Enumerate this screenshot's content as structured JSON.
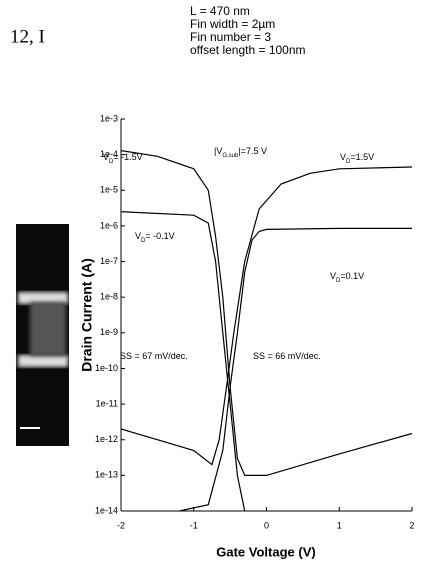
{
  "chart_data": {
    "type": "line",
    "heading": "12, I",
    "parameters": [
      "L = 470 nm",
      "Fin width = 2µm",
      "Fin number = 3",
      "offset length = 100nm"
    ],
    "xlabel": "Gate Voltage (V)",
    "ylabel": "Drain Current (A)",
    "xlim": [
      -2,
      2
    ],
    "xticks": [
      -2,
      -1,
      0,
      1,
      2
    ],
    "ylim": [
      1e-14,
      0.001
    ],
    "log_y": true,
    "yticks": [
      {
        "value": 0.001,
        "label": "1e-3"
      },
      {
        "value": 0.0001,
        "label": "1e-4"
      },
      {
        "value": 1e-05,
        "label": "1e-5"
      },
      {
        "value": 1e-06,
        "label": "1e-6"
      },
      {
        "value": 1e-07,
        "label": "1e-7"
      },
      {
        "value": 1e-08,
        "label": "1e-8"
      },
      {
        "value": 1e-09,
        "label": "1e-9"
      },
      {
        "value": 1e-10,
        "label": "1e-10"
      },
      {
        "value": 1e-11,
        "label": "1e-11"
      },
      {
        "value": 1e-12,
        "label": "1e-12"
      },
      {
        "value": 1e-13,
        "label": "1e-13"
      },
      {
        "value": 1e-14,
        "label": "1e-14"
      }
    ],
    "annotations": [
      {
        "text": "V",
        "sub": "D",
        "after": "= -1.5V"
      },
      {
        "text": "|V",
        "sub": "G,sub",
        "after": "|=7.5 V"
      },
      {
        "text": "V",
        "sub": "D",
        "after": "=1.5V"
      },
      {
        "text": "V",
        "sub": "D",
        "after": "= -0.1V"
      },
      {
        "text": "V",
        "sub": "D",
        "after": "=0.1V"
      },
      {
        "text": "SS = 67 mV/dec."
      },
      {
        "text": "SS = 66 mV/dec."
      }
    ],
    "series": [
      {
        "color": "#000000",
        "x": [
          -2,
          -1.5,
          -1.0,
          -0.8,
          -0.7,
          -0.6,
          -0.5,
          -0.4,
          -0.3,
          0,
          1,
          2
        ],
        "values": [
          0.00013,
          9e-05,
          4e-05,
          1e-05,
          5e-07,
          1e-08,
          3e-11,
          3e-13,
          1e-13,
          1e-13,
          4e-13,
          1.5e-12
        ]
      },
      {
        "color": "#000000",
        "x": [
          -2,
          -1,
          -0.8,
          -0.7,
          -0.6,
          -0.5,
          -0.4,
          -0.3
        ],
        "values": [
          2.5e-06,
          2e-06,
          1.2e-06,
          1e-07,
          1e-09,
          1e-11,
          1e-13,
          1e-14
        ]
      },
      {
        "color": "#000000",
        "x": [
          -2,
          -1.5,
          -1,
          -0.75,
          -0.65,
          -0.55,
          -0.45,
          -0.3,
          -0.1,
          0.2,
          0.6,
          1.0,
          2
        ],
        "values": [
          2e-12,
          1e-12,
          5e-13,
          2e-13,
          1e-12,
          3e-11,
          1e-09,
          1e-07,
          3e-06,
          1.5e-05,
          3e-05,
          4e-05,
          4.5e-05
        ]
      },
      {
        "color": "#000000",
        "x": [
          -1.2,
          -0.8,
          -0.6,
          -0.5,
          -0.4,
          -0.3,
          -0.2,
          -0.1,
          0,
          1,
          2
        ],
        "values": [
          1e-14,
          1.5e-14,
          5e-13,
          3e-11,
          1e-09,
          5e-08,
          4e-07,
          7e-07,
          8e-07,
          8.5e-07,
          8.5e-07
        ]
      }
    ]
  }
}
